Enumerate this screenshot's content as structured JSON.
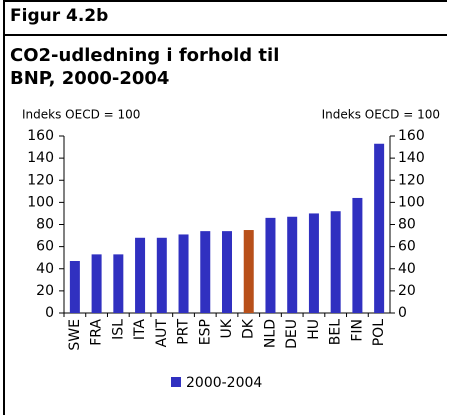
{
  "header": {
    "label": "Figur 4.2b"
  },
  "chart_data": {
    "type": "bar",
    "title": "CO2-udledning i forhold til BNP, 2000-2004",
    "ylabel": "Indeks OECD = 100",
    "y2label": "Indeks OECD = 100",
    "categories": [
      "SWE",
      "FRA",
      "ISL",
      "ITA",
      "AUT",
      "PRT",
      "ESP",
      "UK",
      "DK",
      "NLD",
      "DEU",
      "HU",
      "BEL",
      "FIN",
      "POL"
    ],
    "series": [
      {
        "name": "2000-2004",
        "color": "#3030c0",
        "values": [
          47,
          53,
          53,
          68,
          68,
          71,
          74,
          74,
          75,
          86,
          87,
          90,
          92,
          104,
          153
        ],
        "colors": [
          "#3030c0",
          "#3030c0",
          "#3030c0",
          "#3030c0",
          "#3030c0",
          "#3030c0",
          "#3030c0",
          "#3030c0",
          "#b8501a",
          "#3030c0",
          "#3030c0",
          "#3030c0",
          "#3030c0",
          "#3030c0",
          "#3030c0"
        ]
      }
    ],
    "ylim": [
      0,
      160
    ],
    "yticks": [
      0,
      20,
      40,
      60,
      80,
      100,
      120,
      140,
      160
    ],
    "y2lim": [
      0,
      160
    ],
    "y2ticks": [
      0,
      20,
      40,
      60,
      80,
      100,
      120,
      140,
      160
    ],
    "legend": "bottom"
  }
}
